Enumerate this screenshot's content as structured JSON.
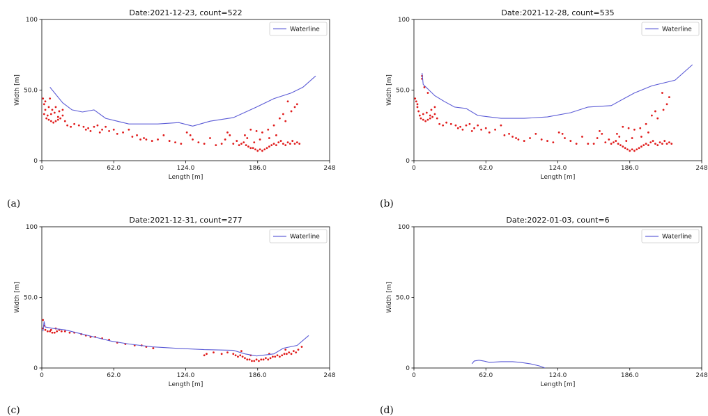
{
  "chart_data": [
    {
      "type": "scatter",
      "caption": "(a)",
      "title": "Date:2021-12-23, count=522",
      "xlabel": "Length [m]",
      "ylabel": "Width [m]",
      "xlim": [
        0,
        248
      ],
      "ylim": [
        0,
        100
      ],
      "xticks": [
        "0",
        "62.0",
        "124.0",
        "186.0",
        "248"
      ],
      "yticks": [
        "0",
        "50.0",
        "100"
      ],
      "legend": {
        "label": "Waterline",
        "placement": "upper-right"
      },
      "waterline": [
        [
          7,
          52
        ],
        [
          18,
          41
        ],
        [
          26,
          36
        ],
        [
          35,
          34.5
        ],
        [
          45,
          36
        ],
        [
          55,
          30
        ],
        [
          65,
          28
        ],
        [
          75,
          26
        ],
        [
          90,
          26
        ],
        [
          100,
          26
        ],
        [
          118,
          27
        ],
        [
          130,
          24.5
        ],
        [
          145,
          28
        ],
        [
          165,
          30.5
        ],
        [
          185,
          38
        ],
        [
          200,
          44
        ],
        [
          215,
          48
        ],
        [
          225,
          52
        ],
        [
          236,
          60
        ]
      ],
      "points": [
        [
          1,
          44
        ],
        [
          2,
          40
        ],
        [
          3,
          36
        ],
        [
          2,
          33
        ],
        [
          4,
          30
        ],
        [
          6,
          29
        ],
        [
          8,
          28
        ],
        [
          10,
          27
        ],
        [
          12,
          28
        ],
        [
          14,
          29
        ],
        [
          5,
          32
        ],
        [
          8,
          33
        ],
        [
          11,
          34
        ],
        [
          14,
          31
        ],
        [
          16,
          30
        ],
        [
          18,
          32
        ],
        [
          20,
          28
        ],
        [
          3,
          42
        ],
        [
          6,
          38
        ],
        [
          9,
          36
        ],
        [
          12,
          38
        ],
        [
          15,
          35
        ],
        [
          18,
          36
        ],
        [
          7,
          44
        ],
        [
          22,
          25
        ],
        [
          25,
          24
        ],
        [
          28,
          26
        ],
        [
          32,
          25
        ],
        [
          36,
          24
        ],
        [
          38,
          22
        ],
        [
          40,
          23
        ],
        [
          42,
          21
        ],
        [
          45,
          24
        ],
        [
          48,
          25
        ],
        [
          50,
          20
        ],
        [
          52,
          22
        ],
        [
          55,
          24
        ],
        [
          58,
          21
        ],
        [
          62,
          22
        ],
        [
          65,
          19
        ],
        [
          70,
          20
        ],
        [
          75,
          22
        ],
        [
          78,
          17
        ],
        [
          82,
          18
        ],
        [
          85,
          15
        ],
        [
          88,
          16
        ],
        [
          90,
          15
        ],
        [
          95,
          14
        ],
        [
          100,
          15
        ],
        [
          105,
          18
        ],
        [
          110,
          14
        ],
        [
          115,
          13
        ],
        [
          120,
          12
        ],
        [
          125,
          20
        ],
        [
          128,
          18
        ],
        [
          130,
          15
        ],
        [
          135,
          13
        ],
        [
          140,
          12
        ],
        [
          145,
          16
        ],
        [
          150,
          11
        ],
        [
          155,
          12
        ],
        [
          158,
          15
        ],
        [
          160,
          20
        ],
        [
          162,
          18
        ],
        [
          165,
          12
        ],
        [
          168,
          14
        ],
        [
          170,
          11
        ],
        [
          172,
          12
        ],
        [
          174,
          13
        ],
        [
          176,
          11
        ],
        [
          178,
          10
        ],
        [
          180,
          9
        ],
        [
          182,
          9
        ],
        [
          184,
          8
        ],
        [
          186,
          7
        ],
        [
          188,
          8
        ],
        [
          190,
          7
        ],
        [
          192,
          8
        ],
        [
          194,
          9
        ],
        [
          196,
          10
        ],
        [
          198,
          11
        ],
        [
          200,
          12
        ],
        [
          202,
          11
        ],
        [
          204,
          13
        ],
        [
          206,
          14
        ],
        [
          208,
          12
        ],
        [
          210,
          11
        ],
        [
          212,
          13
        ],
        [
          214,
          12
        ],
        [
          216,
          14
        ],
        [
          218,
          12
        ],
        [
          220,
          13
        ],
        [
          222,
          12
        ],
        [
          175,
          18
        ],
        [
          180,
          22
        ],
        [
          185,
          21
        ],
        [
          190,
          20
        ],
        [
          195,
          22
        ],
        [
          200,
          25
        ],
        [
          205,
          30
        ],
        [
          210,
          28
        ],
        [
          215,
          35
        ],
        [
          218,
          38
        ],
        [
          220,
          40
        ],
        [
          212,
          42
        ],
        [
          208,
          33
        ],
        [
          202,
          18
        ],
        [
          196,
          16
        ],
        [
          188,
          15
        ],
        [
          183,
          13
        ],
        [
          177,
          16
        ]
      ]
    },
    {
      "type": "scatter",
      "caption": "(b)",
      "title": "Date:2021-12-28, count=535",
      "xlabel": "Length [m]",
      "ylabel": "Width [m]",
      "xlim": [
        0,
        248
      ],
      "ylim": [
        0,
        100
      ],
      "xticks": [
        "0",
        "62.0",
        "124.0",
        "186.0",
        "248"
      ],
      "yticks": [
        "0",
        "50.0",
        "100"
      ],
      "legend": {
        "label": "Waterline",
        "placement": "upper-right"
      },
      "waterline": [
        [
          7,
          62
        ],
        [
          8,
          54
        ],
        [
          18,
          46
        ],
        [
          26,
          42
        ],
        [
          35,
          38
        ],
        [
          45,
          37
        ],
        [
          55,
          32
        ],
        [
          65,
          31
        ],
        [
          75,
          30
        ],
        [
          95,
          30
        ],
        [
          115,
          31
        ],
        [
          135,
          34
        ],
        [
          150,
          38
        ],
        [
          170,
          39
        ],
        [
          190,
          48
        ],
        [
          205,
          53
        ],
        [
          225,
          57
        ],
        [
          240,
          68
        ]
      ],
      "points": [
        [
          7,
          60
        ],
        [
          7,
          58
        ],
        [
          9,
          52
        ],
        [
          12,
          48
        ],
        [
          1,
          44
        ],
        [
          2,
          42
        ],
        [
          3,
          38
        ],
        [
          4,
          35
        ],
        [
          5,
          32
        ],
        [
          6,
          30
        ],
        [
          8,
          29
        ],
        [
          10,
          28
        ],
        [
          12,
          29
        ],
        [
          14,
          30
        ],
        [
          8,
          33
        ],
        [
          11,
          34
        ],
        [
          14,
          32
        ],
        [
          16,
          31
        ],
        [
          18,
          33
        ],
        [
          20,
          30
        ],
        [
          15,
          36
        ],
        [
          18,
          38
        ],
        [
          3,
          40
        ],
        [
          22,
          26
        ],
        [
          25,
          25
        ],
        [
          28,
          27
        ],
        [
          32,
          26
        ],
        [
          36,
          25
        ],
        [
          38,
          23
        ],
        [
          40,
          24
        ],
        [
          42,
          22
        ],
        [
          45,
          25
        ],
        [
          48,
          26
        ],
        [
          50,
          21
        ],
        [
          52,
          23
        ],
        [
          55,
          25
        ],
        [
          58,
          22
        ],
        [
          62,
          23
        ],
        [
          65,
          20
        ],
        [
          70,
          22
        ],
        [
          75,
          25
        ],
        [
          78,
          18
        ],
        [
          82,
          19
        ],
        [
          85,
          17
        ],
        [
          88,
          16
        ],
        [
          90,
          15
        ],
        [
          95,
          14
        ],
        [
          100,
          16
        ],
        [
          105,
          19
        ],
        [
          110,
          15
        ],
        [
          115,
          14
        ],
        [
          120,
          13
        ],
        [
          125,
          20
        ],
        [
          128,
          19
        ],
        [
          130,
          16
        ],
        [
          135,
          14
        ],
        [
          140,
          12
        ],
        [
          145,
          17
        ],
        [
          150,
          12
        ],
        [
          155,
          12
        ],
        [
          158,
          16
        ],
        [
          160,
          21
        ],
        [
          162,
          19
        ],
        [
          165,
          13
        ],
        [
          168,
          15
        ],
        [
          170,
          12
        ],
        [
          172,
          13
        ],
        [
          174,
          14
        ],
        [
          176,
          12
        ],
        [
          178,
          11
        ],
        [
          180,
          10
        ],
        [
          182,
          9
        ],
        [
          184,
          8
        ],
        [
          186,
          7
        ],
        [
          188,
          8
        ],
        [
          190,
          7
        ],
        [
          192,
          8
        ],
        [
          194,
          9
        ],
        [
          196,
          10
        ],
        [
          198,
          11
        ],
        [
          200,
          12
        ],
        [
          202,
          11
        ],
        [
          204,
          13
        ],
        [
          206,
          14
        ],
        [
          208,
          12
        ],
        [
          210,
          11
        ],
        [
          212,
          13
        ],
        [
          214,
          12
        ],
        [
          216,
          14
        ],
        [
          218,
          12
        ],
        [
          220,
          13
        ],
        [
          222,
          12
        ],
        [
          175,
          19
        ],
        [
          180,
          24
        ],
        [
          185,
          23
        ],
        [
          190,
          22
        ],
        [
          195,
          23
        ],
        [
          200,
          26
        ],
        [
          205,
          32
        ],
        [
          210,
          30
        ],
        [
          215,
          36
        ],
        [
          218,
          40
        ],
        [
          220,
          45
        ],
        [
          214,
          48
        ],
        [
          208,
          35
        ],
        [
          202,
          20
        ],
        [
          196,
          17
        ],
        [
          188,
          16
        ],
        [
          183,
          14
        ],
        [
          177,
          17
        ]
      ]
    },
    {
      "type": "scatter",
      "caption": "(c)",
      "title": "Date:2021-12-31, count=277",
      "xlabel": "Length [m]",
      "ylabel": "Width [m]",
      "xlim": [
        0,
        248
      ],
      "ylim": [
        0,
        100
      ],
      "xticks": [
        "0",
        "62.0",
        "124.0",
        "186.0",
        "248"
      ],
      "yticks": [
        "0",
        "50.0",
        "100"
      ],
      "legend": {
        "label": "Waterline",
        "placement": "upper-right"
      },
      "waterline": [
        [
          1,
          26
        ],
        [
          2,
          33
        ],
        [
          3,
          29
        ],
        [
          10,
          28
        ],
        [
          20,
          27
        ],
        [
          35,
          24
        ],
        [
          50,
          21
        ],
        [
          60,
          19
        ],
        [
          75,
          17
        ],
        [
          95,
          15
        ],
        [
          115,
          14
        ],
        [
          140,
          13
        ],
        [
          165,
          12.5
        ],
        [
          175,
          10
        ],
        [
          185,
          8.5
        ],
        [
          200,
          10
        ],
        [
          208,
          14
        ],
        [
          220,
          16
        ],
        [
          230,
          23
        ]
      ],
      "points": [
        [
          1,
          34
        ],
        [
          2,
          30
        ],
        [
          1,
          28
        ],
        [
          3,
          27
        ],
        [
          5,
          26
        ],
        [
          7,
          26
        ],
        [
          9,
          25
        ],
        [
          11,
          25
        ],
        [
          13,
          26
        ],
        [
          15,
          27
        ],
        [
          17,
          26
        ],
        [
          8,
          27
        ],
        [
          12,
          28
        ],
        [
          20,
          26
        ],
        [
          24,
          25
        ],
        [
          28,
          25
        ],
        [
          34,
          24
        ],
        [
          38,
          23
        ],
        [
          42,
          22
        ],
        [
          46,
          22
        ],
        [
          52,
          21
        ],
        [
          58,
          20
        ],
        [
          65,
          18
        ],
        [
          72,
          17
        ],
        [
          80,
          16
        ],
        [
          86,
          16
        ],
        [
          90,
          15
        ],
        [
          96,
          14
        ],
        [
          140,
          9
        ],
        [
          142,
          10
        ],
        [
          148,
          11
        ],
        [
          155,
          10
        ],
        [
          160,
          11
        ],
        [
          165,
          10
        ],
        [
          167,
          9
        ],
        [
          169,
          8
        ],
        [
          171,
          9
        ],
        [
          173,
          8
        ],
        [
          175,
          7
        ],
        [
          177,
          6
        ],
        [
          179,
          6
        ],
        [
          181,
          5
        ],
        [
          183,
          5
        ],
        [
          185,
          6
        ],
        [
          187,
          5
        ],
        [
          189,
          6
        ],
        [
          191,
          6
        ],
        [
          193,
          7
        ],
        [
          195,
          6
        ],
        [
          197,
          7
        ],
        [
          199,
          8
        ],
        [
          201,
          8
        ],
        [
          203,
          9
        ],
        [
          205,
          8
        ],
        [
          207,
          9
        ],
        [
          209,
          10
        ],
        [
          211,
          10
        ],
        [
          213,
          11
        ],
        [
          215,
          10
        ],
        [
          217,
          12
        ],
        [
          219,
          11
        ],
        [
          221,
          13
        ],
        [
          224,
          15
        ],
        [
          172,
          12
        ],
        [
          180,
          9
        ],
        [
          196,
          10
        ],
        [
          210,
          13
        ]
      ]
    },
    {
      "type": "scatter",
      "caption": "(d)",
      "title": "Date:2022-01-03, count=6",
      "xlabel": "Length [m]",
      "ylabel": "Width [m]",
      "xlim": [
        0,
        248
      ],
      "ylim": [
        0,
        100
      ],
      "xticks": [
        "0",
        "62.0",
        "124.0",
        "186.0",
        "248"
      ],
      "yticks": [
        "0",
        "50.0",
        "100"
      ],
      "legend": {
        "label": "Waterline",
        "placement": "upper-right"
      },
      "waterline": [
        [
          50,
          3
        ],
        [
          52,
          5
        ],
        [
          56,
          5.5
        ],
        [
          60,
          5
        ],
        [
          65,
          4
        ],
        [
          75,
          4.5
        ],
        [
          85,
          4.5
        ],
        [
          92,
          4
        ],
        [
          100,
          3
        ],
        [
          108,
          1.5
        ],
        [
          113,
          0
        ]
      ],
      "points": []
    }
  ]
}
